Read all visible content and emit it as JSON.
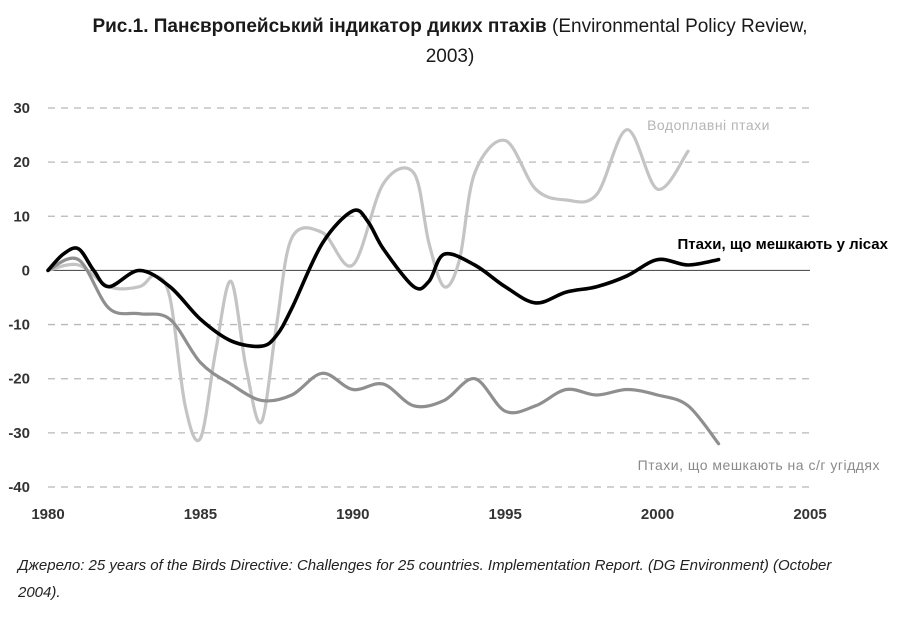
{
  "caption": {
    "bold": "Рис.1. Панєвропейський індикатор диких птахів",
    "rest": " (Environmental Policy Review,",
    "line2": "2003)"
  },
  "source": "Джерело: 25 years of the Birds Directive: Challenges for 25 countries. Implementation Report. (DG Environment) (October 2004).",
  "chart_data": {
    "type": "line",
    "title": "Рис.1. Панєвропейський індикатор диких птахів (Environmental Policy Review, 2003)",
    "xlim": [
      1980,
      2005
    ],
    "ylim": [
      -40,
      30
    ],
    "xticks": [
      1980,
      1985,
      1990,
      1995,
      2000,
      2005
    ],
    "yticks": [
      30,
      20,
      10,
      0,
      -10,
      -20,
      -30,
      -40
    ],
    "grid": "horizontal dashed",
    "zero_line": true,
    "series": [
      {
        "name": "Водоплавні птахи",
        "color": "#c4c4c4",
        "x": [
          1980,
          1981,
          1982,
          1983,
          1983.5,
          1984,
          1984.5,
          1985,
          1985.5,
          1986,
          1986.5,
          1987,
          1987.5,
          1988,
          1989,
          1990,
          1991,
          1992,
          1992.5,
          1993,
          1993.5,
          1994,
          1995,
          1996,
          1997,
          1998,
          1999,
          2000,
          2001
        ],
        "y": [
          0,
          1,
          -3,
          -3,
          -1,
          -5,
          -25,
          -31,
          -15,
          -2,
          -18,
          -28,
          -10,
          6,
          7,
          1,
          16,
          18,
          5,
          -3,
          2,
          18,
          24,
          15,
          13,
          14,
          26,
          15,
          22
        ]
      },
      {
        "name": "Птахи, що мешкають у лісах",
        "color": "#000000",
        "x": [
          1980,
          1980.5,
          1981,
          1981.5,
          1982,
          1983,
          1984,
          1985,
          1986,
          1987,
          1987.5,
          1988,
          1989,
          1990,
          1990.5,
          1991,
          1992,
          1992.5,
          1993,
          1994,
          1995,
          1996,
          1997,
          1998,
          1999,
          2000,
          2001,
          2002
        ],
        "y": [
          0,
          3,
          4,
          0,
          -3,
          0,
          -3,
          -9,
          -13,
          -14,
          -12,
          -7,
          5,
          11,
          9,
          4,
          -3,
          -2,
          3,
          1,
          -3,
          -6,
          -4,
          -3,
          -1,
          2,
          1,
          2
        ]
      },
      {
        "name": "Птахи, що мешкають на с/г угіддях",
        "color": "#8f8f8f",
        "x": [
          1980,
          1981,
          1982,
          1983,
          1984,
          1985,
          1986,
          1987,
          1988,
          1989,
          1990,
          1991,
          1992,
          1993,
          1994,
          1995,
          1996,
          1997,
          1998,
          1999,
          2000,
          2001,
          2002
        ],
        "y": [
          0,
          2,
          -7,
          -8,
          -9,
          -17,
          -21,
          -24,
          -23,
          -19,
          -22,
          -21,
          -25,
          -24,
          -20,
          -26,
          -25,
          -22,
          -23,
          -22,
          -23,
          -25,
          -32
        ]
      }
    ]
  }
}
